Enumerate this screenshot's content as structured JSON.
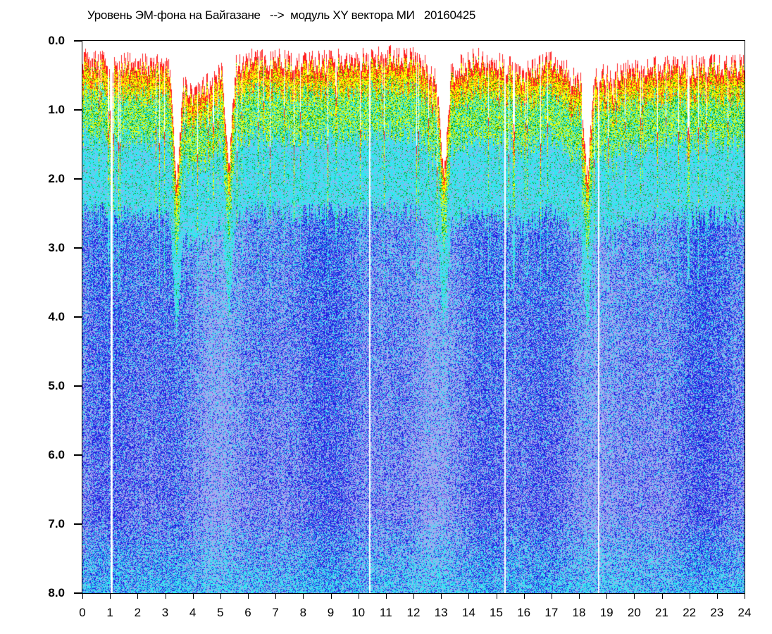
{
  "chart_data": {
    "type": "heatmap",
    "title": "Уровень ЭМ-фона на Байгазане   -->  модуль XY вектора МИ   20160425",
    "xlabel": "",
    "ylabel": "",
    "xlim": [
      0,
      24
    ],
    "ylim": [
      8.0,
      0.0
    ],
    "y_inverted": true,
    "x_ticks": [
      "0",
      "1",
      "2",
      "3",
      "4",
      "5",
      "6",
      "7",
      "8",
      "9",
      "10",
      "11",
      "12",
      "13",
      "14",
      "15",
      "16",
      "17",
      "18",
      "19",
      "20",
      "21",
      "22",
      "23",
      "24"
    ],
    "y_ticks": [
      "0.0",
      "1.0",
      "2.0",
      "3.0",
      "4.0",
      "5.0",
      "6.0",
      "7.0",
      "8.0"
    ],
    "color_scale": [
      "#ff2020",
      "#ffff00",
      "#00a000",
      "#30e8f0",
      "#a8a8f0",
      "#2020e0"
    ],
    "top_envelope_by_hour": [
      0.1,
      0.15,
      0.15,
      0.2,
      0.6,
      0.3,
      0.1,
      0.1,
      0.15,
      0.1,
      0.1,
      0.05,
      0.05,
      0.4,
      0.1,
      0.1,
      0.3,
      0.1,
      0.4,
      0.3,
      0.25,
      0.2,
      0.2,
      0.15,
      0.2
    ],
    "deep_dips_hours": [
      3.4,
      5.3,
      13.1,
      18.3
    ],
    "data_gaps_hours": [
      1.05,
      10.4,
      15.3,
      18.7
    ]
  }
}
